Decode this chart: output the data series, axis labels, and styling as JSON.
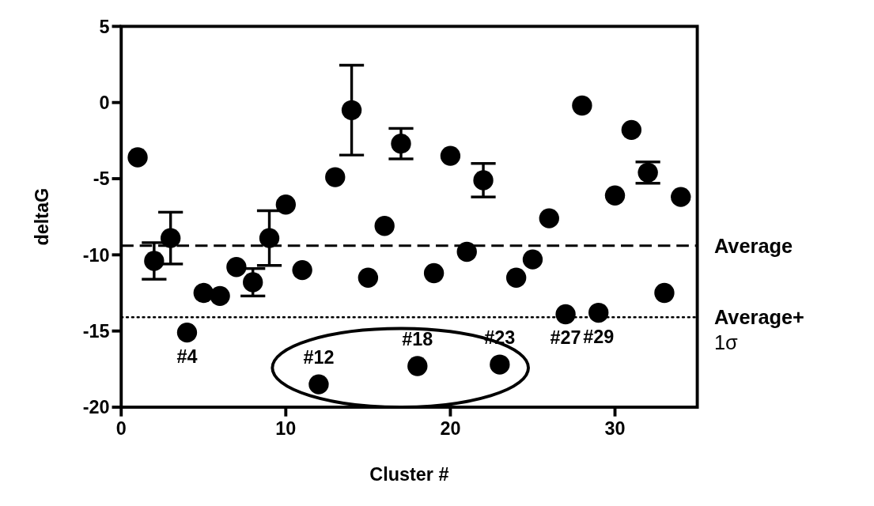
{
  "chart_data": {
    "type": "scatter",
    "xlabel": "Cluster #",
    "ylabel": "deltaG",
    "x": [
      1,
      2,
      3,
      4,
      5,
      6,
      7,
      8,
      9,
      10,
      11,
      12,
      13,
      14,
      15,
      16,
      17,
      18,
      19,
      20,
      21,
      22,
      23,
      24,
      25,
      26,
      27,
      28,
      29,
      30,
      31,
      32,
      33,
      34
    ],
    "values": [
      -3.6,
      -10.4,
      -8.9,
      -15.1,
      -12.5,
      -12.7,
      -10.8,
      -11.8,
      -8.9,
      -6.7,
      -11.0,
      -18.5,
      -4.9,
      -0.5,
      -11.5,
      -8.1,
      -2.7,
      -17.3,
      -11.2,
      -3.5,
      -9.8,
      -5.1,
      -17.2,
      -11.5,
      -10.3,
      -7.6,
      -13.9,
      -0.2,
      -13.8,
      -6.1,
      -1.8,
      -4.6,
      -12.5,
      -6.2
    ],
    "errors": [
      null,
      1.2,
      1.7,
      null,
      null,
      null,
      null,
      0.9,
      1.8,
      null,
      null,
      null,
      null,
      2.95,
      null,
      null,
      1.0,
      null,
      null,
      null,
      null,
      1.1,
      null,
      null,
      null,
      null,
      null,
      null,
      null,
      null,
      null,
      0.7,
      null,
      null
    ],
    "color": "#000000",
    "marker": "circle",
    "xlim": [
      0,
      35
    ],
    "xticks": [
      0,
      10,
      20,
      30
    ],
    "ylim": [
      -20,
      5
    ],
    "yticks": [
      -20,
      -15,
      -10,
      -5,
      0,
      5
    ],
    "grid": false,
    "ref_lines": [
      {
        "axis": "y",
        "value": -9.4,
        "label": "Average",
        "line_style": "dashed"
      },
      {
        "axis": "y",
        "value": -14.1,
        "label": "Average+ 1σ",
        "line_style": "dotted"
      }
    ],
    "annotations": [
      {
        "text": "#4",
        "x": 4,
        "y": -15.1
      },
      {
        "text": "#12",
        "x": 12,
        "y": -18.5
      },
      {
        "text": "#18",
        "x": 18,
        "y": -17.3
      },
      {
        "text": "#23",
        "x": 23,
        "y": -17.2
      },
      {
        "text": "#27",
        "x": 27,
        "y": -13.9
      },
      {
        "text": "#29",
        "x": 29,
        "y": -13.8
      }
    ]
  }
}
